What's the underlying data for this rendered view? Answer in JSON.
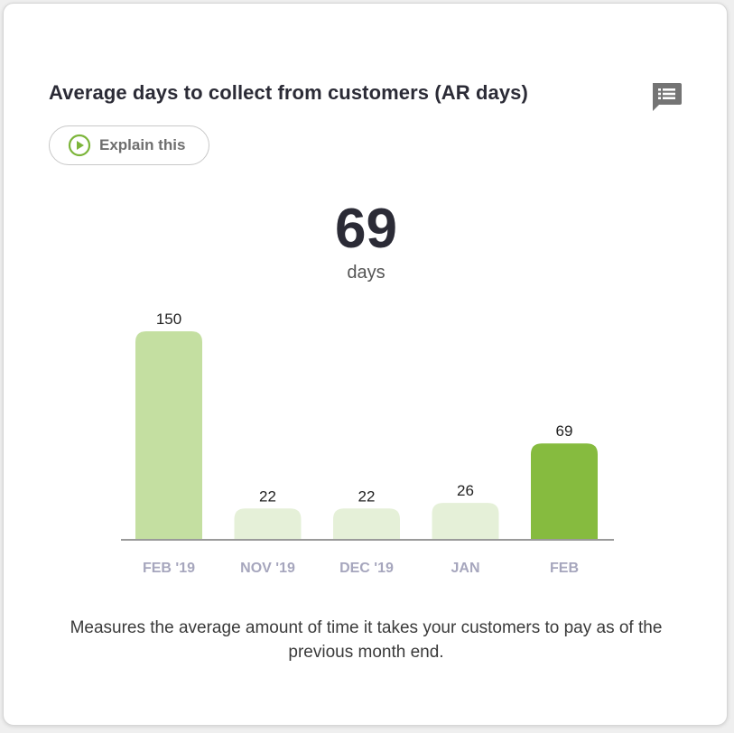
{
  "card": {
    "title": "Average days to collect from customers (AR days)",
    "comment_icon": "comment-list-icon",
    "explain_button": {
      "label": "Explain this",
      "icon": "play-circle-icon"
    },
    "kpi": {
      "value": "69",
      "unit": "days"
    },
    "description": "Measures the average amount of time it takes your customers to pay as of the previous month end."
  },
  "colors": {
    "bar_light": "#c4dfa1",
    "bar_lighter": "#e5f0d8",
    "bar_active": "#86bb3f",
    "axis": "#9a9a9a",
    "tick_label": "#a6a6bd",
    "accent_green": "#7cb53a"
  },
  "chart_data": {
    "type": "bar",
    "categories": [
      "FEB '19",
      "NOV '19",
      "DEC '19",
      "JAN",
      "FEB"
    ],
    "values": [
      150,
      22,
      22,
      26,
      69
    ],
    "data_labels": [
      "150",
      "22",
      "22",
      "26",
      "69"
    ],
    "highlight_index": 4,
    "ylim": [
      0,
      150
    ],
    "grid": false,
    "legend": "none"
  }
}
